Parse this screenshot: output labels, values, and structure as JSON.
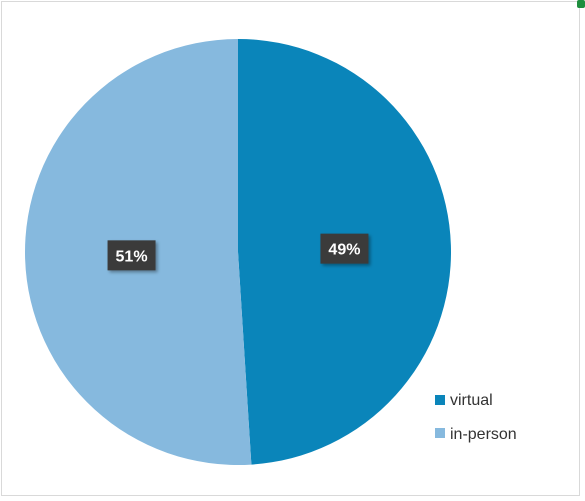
{
  "chart_data": {
    "type": "pie",
    "title": "",
    "categories": [
      "virtual",
      "in-person"
    ],
    "values": [
      49,
      51
    ],
    "labels": [
      "49%",
      "51%"
    ],
    "colors": [
      "#0a85ba",
      "#86b9de"
    ],
    "legend": {
      "placement": "bottom-right",
      "entries": [
        "virtual",
        "in-person"
      ]
    }
  }
}
